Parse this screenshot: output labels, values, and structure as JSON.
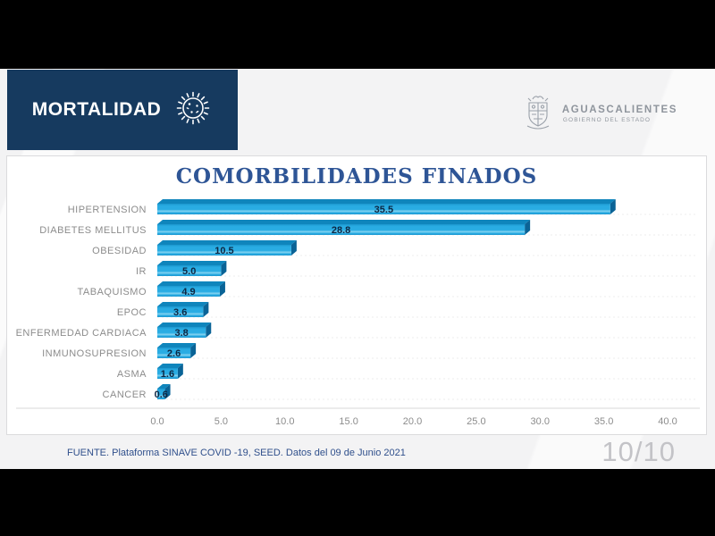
{
  "header": {
    "banner_title": "MORTALIDAD",
    "banner_color": "#163A5F",
    "logo_name": "AGUASCALIENTES",
    "logo_subtitle": "GOBIERNO DEL ESTADO"
  },
  "chart_data": {
    "type": "bar",
    "orientation": "horizontal",
    "title": "COMORBILIDADES FINADOS",
    "categories": [
      "HIPERTENSION",
      "DIABETES MELLITUS",
      "OBESIDAD",
      "IR",
      "TABAQUISMO",
      "EPOC",
      "ENFERMEDAD CARDIACA",
      "INMUNOSUPRESION",
      "ASMA",
      "CANCER"
    ],
    "values": [
      35.5,
      28.8,
      10.5,
      5.0,
      4.9,
      3.6,
      3.8,
      2.6,
      1.6,
      0.6
    ],
    "xlabel": "",
    "ylabel": "",
    "xlim": [
      0,
      40
    ],
    "x_ticks": [
      "0.0",
      "5.0",
      "10.0",
      "15.0",
      "20.0",
      "25.0",
      "30.0",
      "35.0",
      "40.0"
    ],
    "grid": false,
    "legend": "none",
    "colors": {
      "bar_front": "#29ACE3",
      "bar_front_dark": "#1B96CE",
      "bar_gloss": "#86D4F1",
      "bar_top": "#0F85BC",
      "bar_side": "#0A6396",
      "value_label": "#0D2743",
      "category_label": "#8C8C8C",
      "tick_label": "#8C8C8C",
      "axis_line": "#D9D9D9",
      "row_line": "#ECECEE",
      "title_color": "#2E5596"
    }
  },
  "footer": {
    "source": "FUENTE. Plataforma SINAVE COVID -19, SEED. Datos del 09 de Junio 2021",
    "page_indicator": "10/10"
  }
}
